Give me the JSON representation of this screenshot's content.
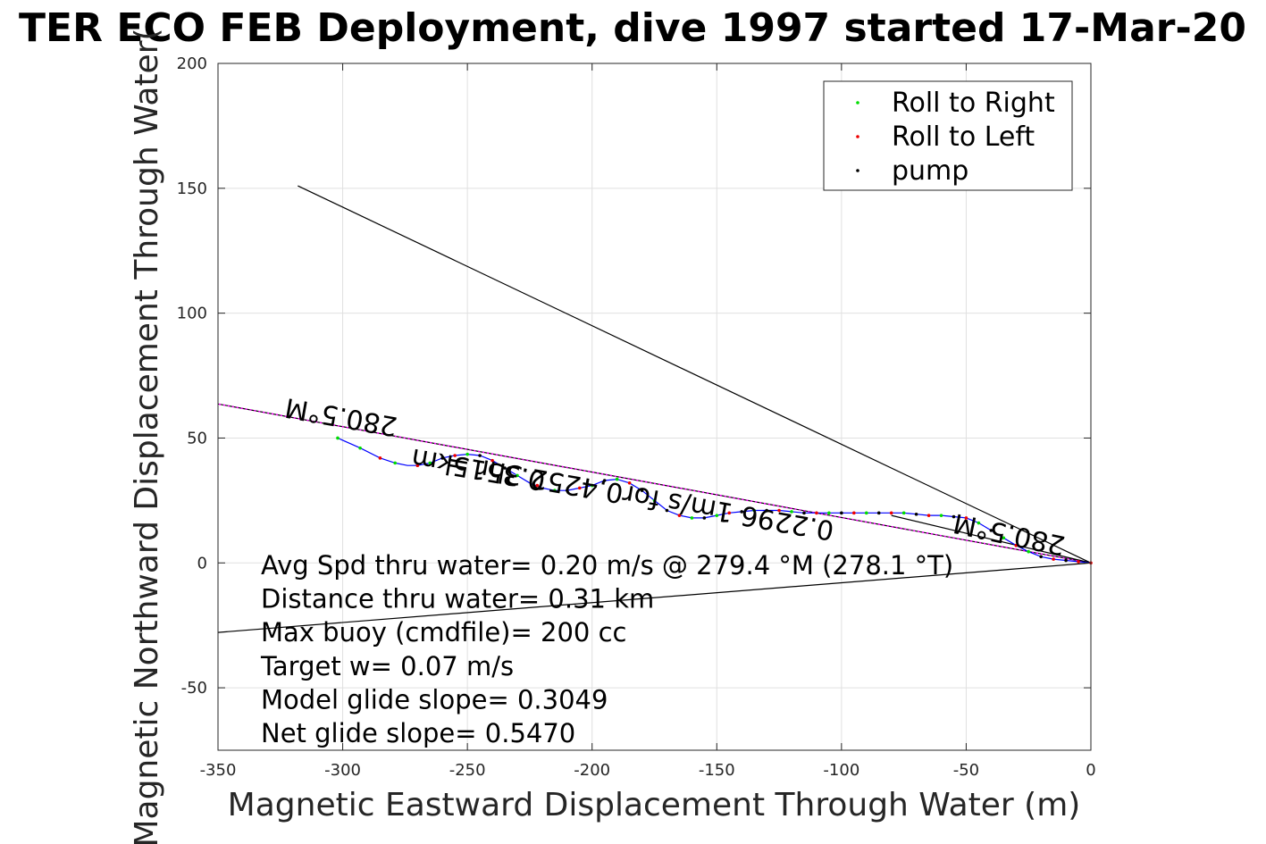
{
  "chart_data": {
    "type": "line",
    "title": "TER ECO FEB Deployment, dive 1997 started 17-Mar-20",
    "xlabel": "Magnetic Eastward Displacement Through Water (m)",
    "ylabel": "Magnetic Northward Displacement Through Water(",
    "xlim": [
      -350,
      0
    ],
    "ylim": [
      -75,
      200
    ],
    "xticks": [
      -350,
      -300,
      -250,
      -200,
      -150,
      -100,
      -50,
      0
    ],
    "yticks": [
      -50,
      0,
      50,
      100,
      150,
      200
    ],
    "xtick_labels": [
      "-350",
      "-300",
      "-250",
      "-200",
      "-150",
      "-100",
      "-50",
      "0"
    ],
    "ytick_labels": [
      "-50",
      "0",
      "50",
      "100",
      "150",
      "200"
    ],
    "grid": true,
    "legend_position": "top-right",
    "legend": [
      {
        "label": "Roll to Right",
        "color": "#00dd00"
      },
      {
        "label": "Roll to Left",
        "color": "#ee0000"
      },
      {
        "label": "pump",
        "color": "#000000"
      }
    ],
    "lines": [
      {
        "x": [
          0,
          -318
        ],
        "y": [
          0,
          151
        ],
        "color": "#000000"
      },
      {
        "x": [
          0,
          -352
        ],
        "y": [
          0,
          64
        ],
        "color": "#000000"
      },
      {
        "x": [
          0,
          -352
        ],
        "y": [
          0,
          64
        ],
        "color": "#ff00ff",
        "dashed": true
      },
      {
        "x": [
          0,
          -352
        ],
        "y": [
          0,
          -28
        ],
        "color": "#000000"
      },
      {
        "x": [
          0,
          -80
        ],
        "y": [
          0,
          19
        ],
        "color": "#000000"
      }
    ],
    "track": {
      "color": "#0000ff",
      "x": [
        -302,
        -293,
        -285,
        -279,
        -274,
        -270,
        -265,
        -260,
        -255,
        -250,
        -245,
        -240,
        -235,
        -230,
        -225,
        -220,
        -215,
        -210,
        -205,
        -200,
        -195,
        -190,
        -185,
        -180,
        -175,
        -170,
        -165,
        -160,
        -155,
        -150,
        -145,
        -140,
        -135,
        -130,
        -125,
        -120,
        -115,
        -110,
        -105,
        -100,
        -95,
        -90,
        -85,
        -80,
        -75,
        -70,
        -65,
        -60,
        -55,
        -50,
        -45,
        -40,
        -35,
        -30,
        -25,
        -20,
        -15,
        -10,
        -5,
        0
      ],
      "y": [
        50,
        46,
        42,
        40,
        39,
        39,
        40,
        42,
        43,
        43.5,
        43,
        41,
        38,
        35,
        32,
        30,
        29,
        29,
        30,
        31,
        33,
        33.5,
        32,
        29,
        25,
        21,
        19,
        18,
        18,
        19,
        20,
        20.5,
        21,
        21,
        21,
        20.5,
        20,
        20,
        20,
        20,
        20,
        20,
        20,
        20,
        20,
        19.5,
        19,
        19,
        18.5,
        18,
        16,
        13,
        10,
        7,
        4.5,
        2.5,
        1.5,
        1,
        0.5,
        0
      ]
    },
    "points_right": {
      "x": [
        -302,
        -293,
        -279,
        -265,
        -250,
        -230,
        -215,
        -200,
        -190,
        -175,
        -160,
        -150,
        -135,
        -120,
        -105,
        -90,
        -75,
        -60,
        -45,
        -35,
        -25
      ],
      "y": [
        50,
        46,
        40,
        40,
        43.5,
        35,
        29,
        31,
        33.5,
        25,
        18,
        19,
        21,
        20.5,
        20,
        20,
        20,
        19,
        16,
        10,
        4.5
      ]
    },
    "points_left": {
      "x": [
        -285,
        -270,
        -255,
        -240,
        -222,
        -205,
        -185,
        -165,
        -145,
        -125,
        -110,
        -95,
        -80,
        -65,
        -50,
        -30,
        -15,
        -5,
        0
      ],
      "y": [
        42,
        39,
        43,
        41,
        31,
        30,
        32,
        19,
        20,
        21,
        20,
        20,
        20,
        19,
        18,
        7,
        1.5,
        0.5,
        0
      ]
    },
    "points_pump": {
      "x": [
        -260,
        -245,
        -235,
        -210,
        -195,
        -180,
        -170,
        -155,
        -140,
        -130,
        -115,
        -100,
        -85,
        -70,
        -55,
        -40,
        -20,
        -10
      ],
      "y": [
        42,
        43,
        38,
        29,
        33,
        29,
        21,
        18,
        20.5,
        21,
        20,
        20,
        20,
        19.5,
        18.5,
        13,
        2.5,
        1
      ]
    },
    "rotated_labels": [
      {
        "text": "280.5°M",
        "x": -300,
        "y": 62,
        "angle": 190
      },
      {
        "text": "0.3515km",
        "x": -245,
        "y": 41,
        "angle": 190
      },
      {
        "text": "0.2296 1m/s for0.4252 3hr =",
        "x": -180,
        "y": 30,
        "angle": 190
      },
      {
        "text": "280.5°M",
        "x": -32,
        "y": 15,
        "angle": 192
      }
    ],
    "annotations": [
      "Avg Spd thru water=  0.20 m/s @ 279.4 °M (278.1 °T)",
      "Distance thru water=  0.31 km",
      "Max buoy (cmdfile)= 200 cc",
      "Target w= 0.07 m/s",
      "Model glide slope= 0.3049",
      "Net glide slope= 0.5470"
    ]
  }
}
